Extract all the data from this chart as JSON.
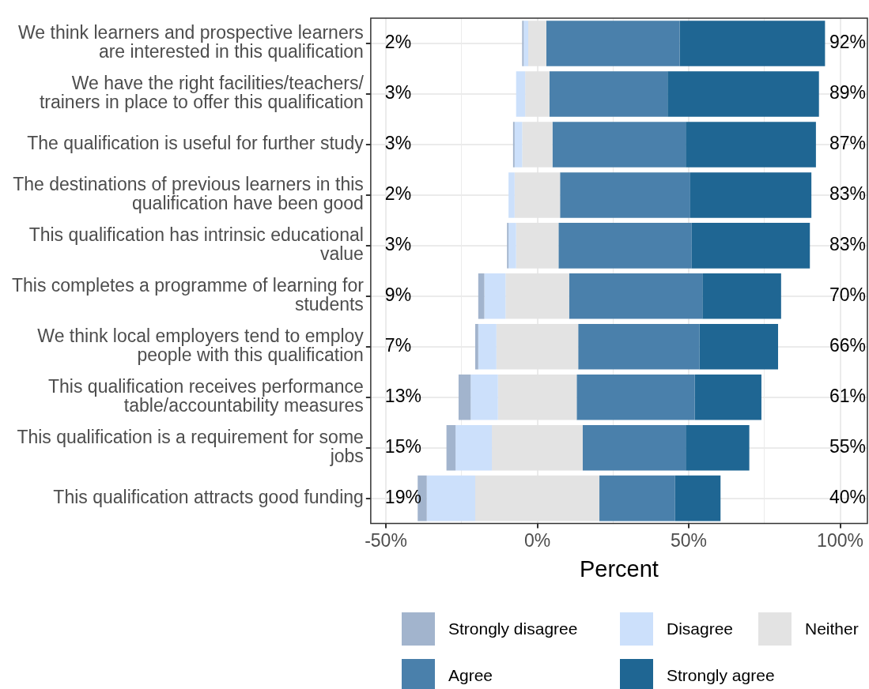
{
  "chart_data": {
    "type": "bar",
    "orientation": "horizontal",
    "xlabel": "Percent",
    "categories": [
      "We think learners and prospective learners are interested in this qualification",
      "We have the right facilities/teachers/ trainers in place to offer this qualification",
      "The qualification is useful for further study",
      "The destinations of previous learners in this qualification have been good",
      "This qualification has intrinsic educational value",
      "This completes a programme of learning for students",
      "We think local employers tend to employ people with this qualification",
      "This qualification receives performance table/accountability measures",
      "This qualification is a requirement for some jobs",
      "This qualification attracts good funding"
    ],
    "series": [
      {
        "name": "Strongly disagree",
        "color": "#a2b4cd",
        "values": [
          0.5,
          null,
          0.5,
          null,
          0.5,
          2,
          1,
          4,
          3,
          3
        ],
        "base": [
          -5,
          null,
          -8,
          null,
          -10,
          -19.5,
          -20.5,
          -26,
          -30,
          -39.5
        ]
      },
      {
        "name": "Disagree",
        "color": "#cce0fb",
        "values": [
          1.5,
          3,
          2.5,
          2,
          2.5,
          7,
          6,
          9,
          12,
          16
        ],
        "base": [
          -4.5,
          -7,
          -7.5,
          -9.5,
          -9.5,
          -17.5,
          -19.5,
          -22,
          -27,
          -36.5
        ]
      },
      {
        "name": "Neither",
        "color": "#e3e3e3",
        "values": [
          6,
          8,
          10,
          15,
          14,
          21,
          27,
          26,
          30,
          41
        ],
        "base": [
          -3,
          -4,
          -5,
          -7.5,
          -7,
          -10.5,
          -13.5,
          -13,
          -15,
          -20.5
        ]
      },
      {
        "name": "Agree",
        "color": "#4a80ab",
        "values": [
          44,
          39,
          44,
          43,
          44,
          44,
          40,
          39,
          34,
          25
        ],
        "base": [
          3,
          4,
          5,
          7.5,
          7,
          10.5,
          13.5,
          13,
          15,
          20.5
        ]
      },
      {
        "name": "Strongly agree",
        "color": "#1f6693",
        "values": [
          48,
          50,
          43,
          40,
          39,
          26,
          26,
          22,
          21,
          15
        ],
        "base": [
          47,
          43,
          49,
          50.5,
          51,
          54.5,
          53.5,
          52,
          49,
          45.5
        ]
      }
    ],
    "annotations": [
      "2%",
      "92%",
      "3%",
      "89%",
      "3%",
      "87%",
      "2%",
      "83%",
      "3%",
      "83%",
      "9%",
      "70%",
      "7%",
      "66%",
      "13%",
      "61%",
      "15%",
      "55%",
      "19%",
      "40%"
    ],
    "xlim": [
      -55,
      109
    ],
    "xticks": [
      {
        "value": -50,
        "label": "-50%"
      },
      {
        "value": -25,
        "label": null
      },
      {
        "value": 0,
        "label": "0%"
      },
      {
        "value": 25,
        "label": null
      },
      {
        "value": 50,
        "label": "50%"
      },
      {
        "value": 75,
        "label": null
      },
      {
        "value": 100,
        "label": "100%"
      }
    ],
    "grid": true,
    "legend": "bottom"
  }
}
